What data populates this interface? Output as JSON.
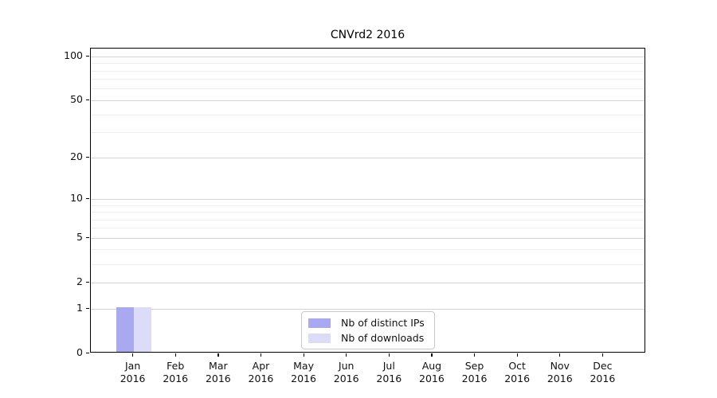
{
  "chart_data": {
    "type": "bar",
    "title": "CNVrd2 2016",
    "categories": [
      "Jan",
      "Feb",
      "Mar",
      "Apr",
      "May",
      "Jun",
      "Jul",
      "Aug",
      "Sep",
      "Oct",
      "Nov",
      "Dec"
    ],
    "category_sublabel": "2016",
    "series": [
      {
        "name": "Nb of distinct IPs",
        "color": "#a9a9f2",
        "values": [
          1,
          0,
          0,
          0,
          0,
          0,
          0,
          0,
          0,
          0,
          0,
          0
        ]
      },
      {
        "name": "Nb of downloads",
        "color": "#dcdcf9",
        "values": [
          1,
          0,
          0,
          0,
          0,
          0,
          0,
          0,
          0,
          0,
          0,
          0
        ]
      }
    ],
    "xlabel": "",
    "ylabel": "",
    "y_axis": {
      "scale": "log1p",
      "major_ticks": [
        0,
        1,
        2,
        5,
        10,
        20,
        50,
        100
      ],
      "minor_gridlines": [
        3,
        4,
        6,
        7,
        8,
        9,
        30,
        40,
        60,
        70,
        80,
        90
      ],
      "top_value": 113.6
    },
    "grid": "horizontal",
    "legend_position": "bottom-center-inside",
    "colors": {
      "major_grid": "#d4d4d4",
      "minor_grid": "#efefef",
      "spine": "#000000",
      "background": "#ffffff"
    }
  }
}
